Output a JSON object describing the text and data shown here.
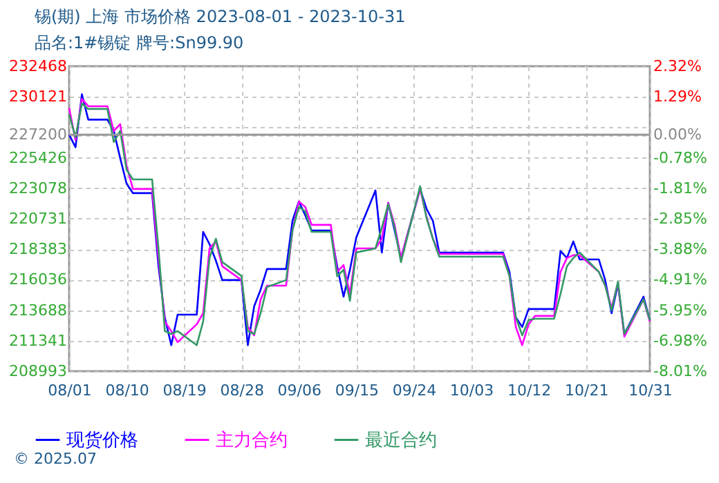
{
  "chart_data": {
    "type": "line",
    "title": "锡(期) 上海 市场价格 2023-08-01 - 2023-10-31",
    "subtitle": "品名:1#锡锭 牌号:Sn99.90",
    "annotations": [
      "© 2025.07"
    ],
    "x": [
      "2023-08-01",
      "2023-08-02",
      "2023-08-03",
      "2023-08-04",
      "2023-08-07",
      "2023-08-08",
      "2023-08-09",
      "2023-08-10",
      "2023-08-11",
      "2023-08-14",
      "2023-08-15",
      "2023-08-16",
      "2023-08-17",
      "2023-08-18",
      "2023-08-21",
      "2023-08-22",
      "2023-08-23",
      "2023-08-24",
      "2023-08-25",
      "2023-08-28",
      "2023-08-29",
      "2023-08-30",
      "2023-08-31",
      "2023-09-01",
      "2023-09-04",
      "2023-09-05",
      "2023-09-06",
      "2023-09-07",
      "2023-09-08",
      "2023-09-11",
      "2023-09-12",
      "2023-09-13",
      "2023-09-14",
      "2023-09-15",
      "2023-09-18",
      "2023-09-19",
      "2023-09-20",
      "2023-09-21",
      "2023-09-22",
      "2023-09-25",
      "2023-09-26",
      "2023-09-27",
      "2023-09-28",
      "2023-10-08",
      "2023-10-09",
      "2023-10-10",
      "2023-10-11",
      "2023-10-12",
      "2023-10-13",
      "2023-10-16",
      "2023-10-17",
      "2023-10-18",
      "2023-10-19",
      "2023-10-20",
      "2023-10-23",
      "2023-10-24",
      "2023-10-25",
      "2023-10-26",
      "2023-10-27",
      "2023-10-30",
      "2023-10-31"
    ],
    "series": [
      {
        "name": "现货价格",
        "color": "#0000ff",
        "values": [
          227200,
          226230,
          230310,
          228360,
          228360,
          227480,
          225400,
          223440,
          222700,
          222700,
          217070,
          213140,
          211000,
          213350,
          213350,
          219720,
          218770,
          217500,
          216010,
          216010,
          211000,
          214000,
          215260,
          216860,
          216860,
          220570,
          222060,
          221000,
          219830,
          219830,
          217070,
          214730,
          216800,
          219300,
          222910,
          218130,
          221950,
          219830,
          217710,
          223020,
          221500,
          220570,
          218130,
          218130,
          216640,
          213140,
          212400,
          213780,
          213780,
          213780,
          218240,
          217710,
          218980,
          217600,
          217600,
          216010,
          213460,
          215680,
          211860,
          214730,
          212930
        ]
      },
      {
        "name": "主力合约",
        "color": "#ff00ff",
        "values": [
          229250,
          226770,
          229950,
          229390,
          229390,
          227480,
          228010,
          224820,
          223020,
          223020,
          217710,
          212820,
          212080,
          211230,
          212610,
          213460,
          218450,
          218980,
          217070,
          216010,
          212400,
          211760,
          214520,
          215580,
          215580,
          219830,
          222060,
          221640,
          220260,
          220260,
          216640,
          217170,
          214940,
          218450,
          218450,
          219190,
          221950,
          220260,
          217710,
          223020,
          220890,
          219190,
          218020,
          218020,
          216330,
          212400,
          211000,
          212610,
          213250,
          213250,
          216640,
          217710,
          217920,
          217920,
          216640,
          215580,
          213880,
          215790,
          211650,
          214520,
          212820
        ]
      },
      {
        "name": "最近合约",
        "color": "#339966",
        "values": [
          228760,
          227000,
          229600,
          229180,
          229180,
          226630,
          227500,
          224500,
          223760,
          223760,
          218450,
          212080,
          211860,
          212080,
          211000,
          212820,
          217710,
          219190,
          217390,
          216330,
          212080,
          211860,
          213460,
          215470,
          216010,
          219830,
          221640,
          221300,
          219720,
          219720,
          216300,
          216800,
          214410,
          218130,
          218450,
          220040,
          221850,
          220040,
          217390,
          223230,
          220780,
          219190,
          217810,
          217810,
          216330,
          213140,
          211760,
          212930,
          213030,
          213030,
          214940,
          217070,
          217710,
          218130,
          216640,
          215580,
          213670,
          215900,
          211860,
          214520,
          212930
        ]
      }
    ],
    "xlim": [
      "2023-08-01",
      "2023-10-31"
    ],
    "xticks": [
      {
        "value": "2023-08-01",
        "label": "08/01"
      },
      {
        "value": "2023-08-10",
        "label": "08/10"
      },
      {
        "value": "2023-08-19",
        "label": "08/19"
      },
      {
        "value": "2023-08-28",
        "label": "08/28"
      },
      {
        "value": "2023-09-06",
        "label": "09/06"
      },
      {
        "value": "2023-09-15",
        "label": "09/15"
      },
      {
        "value": "2023-09-24",
        "label": "09/24"
      },
      {
        "value": "2023-10-03",
        "label": "10/03"
      },
      {
        "value": "2023-10-12",
        "label": "10/12"
      },
      {
        "value": "2023-10-21",
        "label": "10/21"
      },
      {
        "value": "2023-10-31",
        "label": "10/31"
      }
    ],
    "ylim": [
      208993,
      232468
    ],
    "yticks": [
      208993,
      211341,
      213688,
      216036,
      218383,
      220731,
      223078,
      225426,
      227200,
      {
        "value": 227773,
        "label": null
      },
      230121,
      232468
    ],
    "y2lim": [
      -8.01,
      2.32
    ],
    "y2ticks": [
      {
        "value": -8.01,
        "label": "-8.01%"
      },
      {
        "value": -6.98,
        "label": "-6.98%"
      },
      {
        "value": -5.95,
        "label": "-5.95%"
      },
      {
        "value": -4.91,
        "label": "-4.91%"
      },
      {
        "value": -3.88,
        "label": "-3.88%"
      },
      {
        "value": -2.85,
        "label": "-2.85%"
      },
      {
        "value": -1.81,
        "label": "-1.81%"
      },
      {
        "value": -0.78,
        "label": "-0.78%"
      },
      {
        "value": 0,
        "label": "0.00%"
      },
      {
        "value": 1.29,
        "label": "1.29%"
      },
      {
        "value": 2.32,
        "label": "2.32%"
      }
    ],
    "ref_lines": [
      {
        "axis": "y2",
        "value": 0,
        "color": "#999999"
      }
    ],
    "grid": true,
    "legend": "bottom"
  }
}
